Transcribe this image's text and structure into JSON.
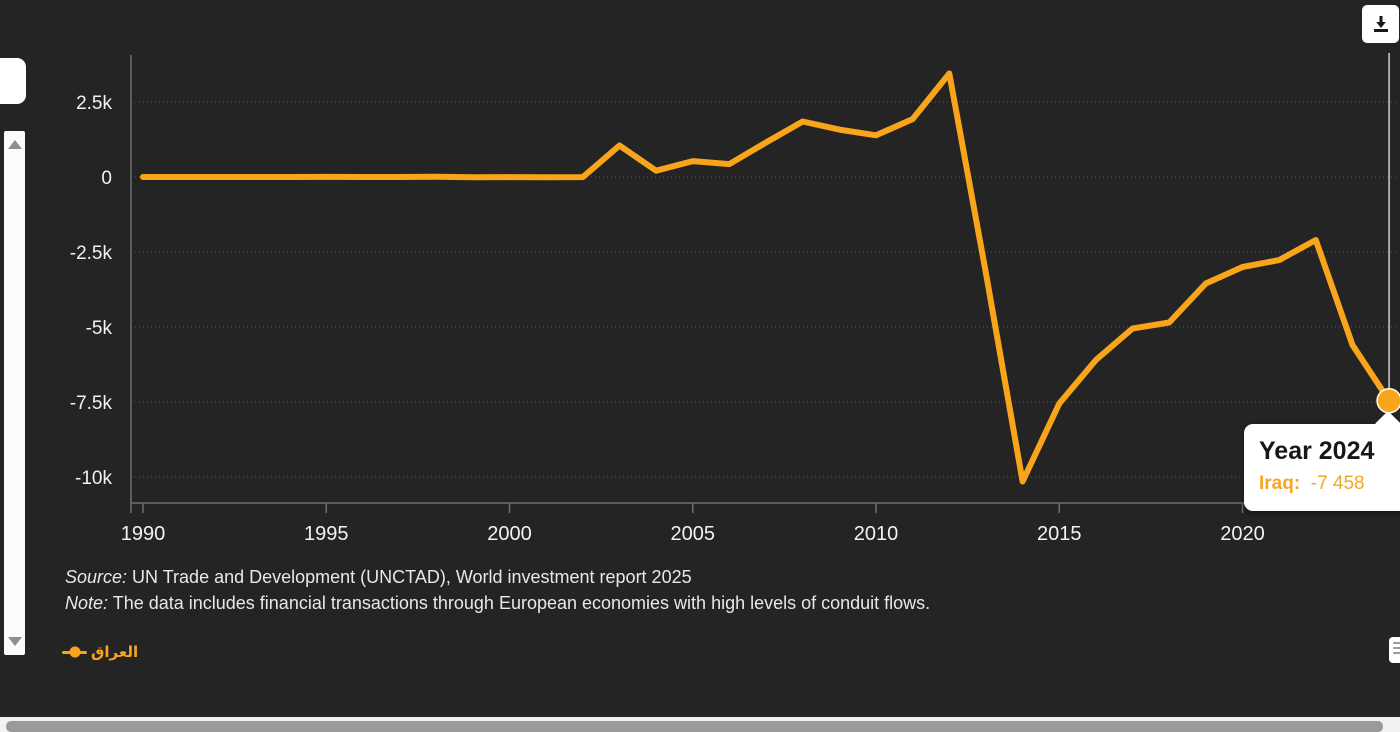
{
  "header": {
    "download_button": {
      "icon": "download-icon"
    }
  },
  "chart_data": {
    "type": "line",
    "x": [
      1990,
      1991,
      1992,
      1993,
      1994,
      1995,
      1996,
      1997,
      1998,
      1999,
      2000,
      2001,
      2002,
      2003,
      2004,
      2005,
      2006,
      2007,
      2008,
      2009,
      2010,
      2011,
      2012,
      2013,
      2014,
      2015,
      2016,
      2017,
      2018,
      2019,
      2020,
      2021,
      2022,
      2023,
      2024
    ],
    "series": [
      {
        "name": "Iraq",
        "name_ar": "العراق",
        "color": "#F9A51B",
        "values": [
          0,
          0,
          0,
          0,
          0,
          2,
          0,
          1,
          7,
          -7,
          -3,
          -6,
          -2,
          1050,
          210,
          530,
          430,
          1150,
          1850,
          1580,
          1390,
          1930,
          3450,
          -3200,
          -10150,
          -7550,
          -6100,
          -5050,
          -4850,
          -3550,
          -3000,
          -2770,
          -2100,
          -5600,
          -7458
        ]
      }
    ],
    "x_ticks": [
      1990,
      1995,
      2000,
      2005,
      2010,
      2015,
      2020
    ],
    "y_ticks": [
      {
        "label": "2.5k",
        "value": 2500
      },
      {
        "label": "0",
        "value": 0
      },
      {
        "label": "-2.5k",
        "value": -2500
      },
      {
        "label": "-5k",
        "value": -5000
      },
      {
        "label": "-7.5k",
        "value": -7500
      },
      {
        "label": "-10k",
        "value": -10000
      }
    ],
    "xlim": [
      1989.6,
      2024.25
    ],
    "ylim": [
      -10900,
      4000
    ],
    "grid": "horizontal-dotted",
    "legend_position": "bottom-left",
    "highlight": {
      "year": 2024,
      "value": -7458
    }
  },
  "tooltip": {
    "title": "Year 2024",
    "series_label": "Iraq:",
    "value": "-7 458"
  },
  "legend": {
    "items": [
      {
        "label": "العراق",
        "color": "#F9A51B"
      }
    ]
  },
  "footer": {
    "source_label": "Source:",
    "source_text": " UN Trade and Development (UNCTAD), World investment report 2025",
    "note_label": "Note:",
    "note_text": " The data includes financial transactions through European economies with high levels of conduit flows."
  },
  "colors": {
    "background": "#242424",
    "line": "#F9A51B",
    "axis": "#6e6e6e",
    "grid": "#585858",
    "tick_label": "#f2f2f2",
    "crosshair": "#cfcfcf",
    "tooltip_accent": "#F5A623"
  }
}
